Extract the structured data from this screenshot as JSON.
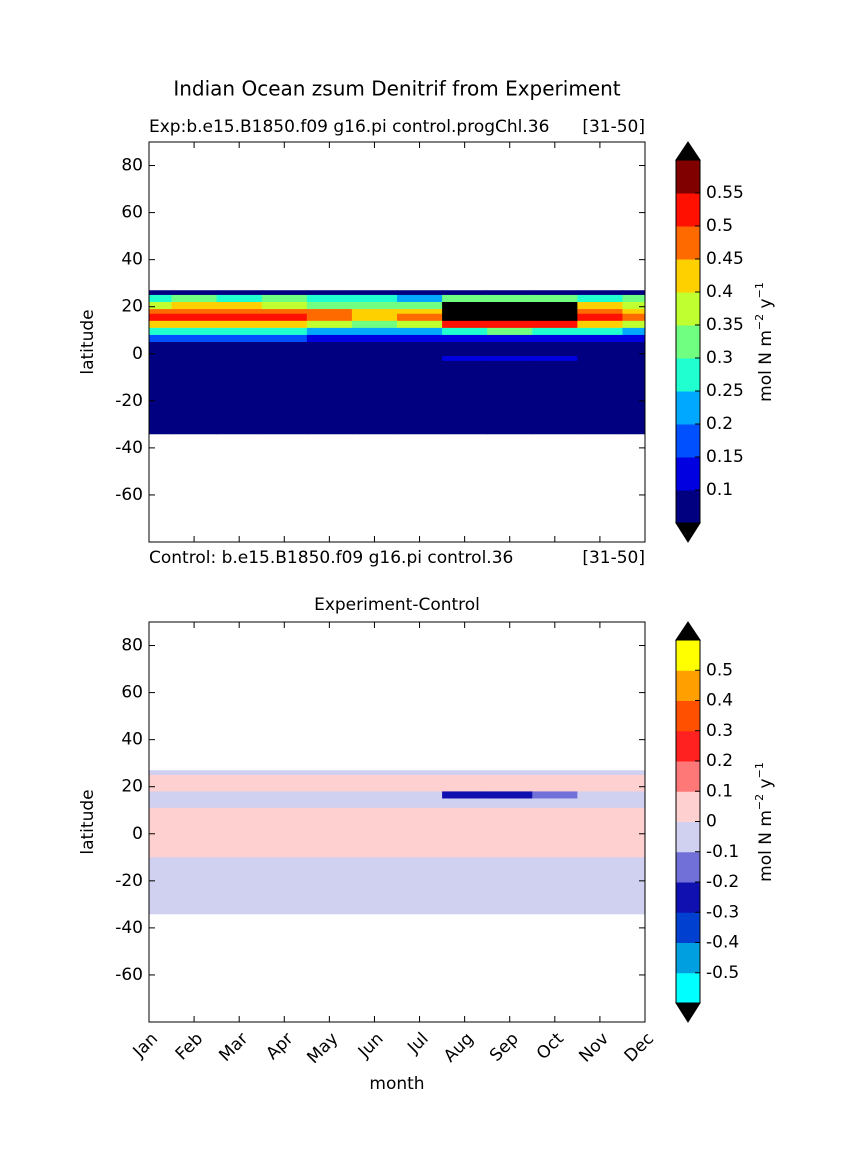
{
  "chart_data": [
    {
      "type": "contourf",
      "title": "Indian Ocean zsum Denitrif from Experiment",
      "subtitle_left": "Exp:b.e15.B1850.f09 g16.pi control.progChl.36",
      "subtitle_right": "[31-50]",
      "ylabel": "latitude",
      "ylim": [
        -80,
        90
      ],
      "yticks": [
        -60,
        -40,
        -20,
        0,
        20,
        40,
        60,
        80
      ],
      "lat_edges": [
        27,
        25,
        22,
        19,
        17,
        14,
        11,
        8,
        5,
        -1,
        -3,
        -34
      ],
      "values": [
        [
          0.07,
          0.07,
          0.07,
          0.07,
          0.07,
          0.07,
          0.07,
          0.07,
          0.07,
          0.07,
          0.07,
          0.07
        ],
        [
          0.28,
          0.3,
          0.26,
          0.3,
          0.28,
          0.25,
          0.22,
          0.3,
          0.32,
          0.3,
          0.28,
          0.3
        ],
        [
          0.38,
          0.4,
          0.42,
          0.36,
          0.3,
          0.3,
          0.3,
          0.65,
          0.65,
          0.65,
          0.4,
          0.36
        ],
        [
          0.47,
          0.48,
          0.48,
          0.47,
          0.45,
          0.42,
          0.44,
          0.65,
          0.65,
          0.65,
          0.47,
          0.42
        ],
        [
          0.52,
          0.53,
          0.53,
          0.52,
          0.47,
          0.42,
          0.45,
          0.65,
          0.65,
          0.65,
          0.52,
          0.47
        ],
        [
          0.42,
          0.44,
          0.44,
          0.42,
          0.38,
          0.34,
          0.36,
          0.5,
          0.52,
          0.5,
          0.42,
          0.38
        ],
        [
          0.25,
          0.27,
          0.27,
          0.25,
          0.22,
          0.2,
          0.22,
          0.28,
          0.3,
          0.28,
          0.25,
          0.23
        ],
        [
          0.16,
          0.18,
          0.17,
          0.15,
          0.12,
          0.1,
          0.1,
          0.12,
          0.13,
          0.12,
          0.11,
          0.12
        ],
        [
          0.07,
          0.07,
          0.07,
          0.07,
          0.07,
          0.07,
          0.07,
          0.07,
          0.07,
          0.07,
          0.07,
          0.07
        ],
        [
          0.07,
          0.07,
          0.07,
          0.07,
          0.07,
          0.07,
          0.07,
          0.12,
          0.13,
          0.11,
          0.07,
          0.07
        ],
        [
          0.06,
          0.06,
          0.06,
          0.06,
          0.06,
          0.06,
          0.06,
          0.06,
          0.06,
          0.06,
          0.06,
          0.06
        ]
      ],
      "colorbar": {
        "label_parts": [
          "mol N m",
          "−2",
          " y",
          "−1"
        ],
        "levels": [
          0.05,
          0.1,
          0.15,
          0.2,
          0.25,
          0.3,
          0.35,
          0.4,
          0.45,
          0.5,
          0.55,
          0.6
        ],
        "colors": [
          "#000080",
          "#0000e0",
          "#0050ff",
          "#00a8ff",
          "#20ffd0",
          "#70ff80",
          "#c0ff30",
          "#ffd000",
          "#ff6a00",
          "#ff1000",
          "#800000"
        ],
        "extend_colors": [
          "#000000",
          "#000000"
        ],
        "ticks": [
          0.1,
          0.15,
          0.2,
          0.25,
          0.3,
          0.35,
          0.4,
          0.45,
          0.5,
          0.55
        ]
      }
    },
    {
      "type": "contourf",
      "title": "Experiment-Control",
      "subtitle_left": "Control: b.e15.B1850.f09 g16.pi control.36",
      "subtitle_right": "[31-50]",
      "ylabel": "latitude",
      "xlabel": "month",
      "categories": [
        "Jan",
        "Feb",
        "Mar",
        "Apr",
        "May",
        "Jun",
        "Jul",
        "Aug",
        "Sep",
        "Oct",
        "Nov",
        "Dec"
      ],
      "ylim": [
        -80,
        90
      ],
      "yticks": [
        -60,
        -40,
        -20,
        0,
        20,
        40,
        60,
        80
      ],
      "lat_edges": [
        27,
        25,
        18,
        15,
        11,
        -10,
        -34
      ],
      "values": [
        [
          -0.05,
          -0.05,
          -0.05,
          -0.05,
          -0.05,
          -0.05,
          -0.05,
          -0.05,
          -0.05,
          -0.05,
          -0.05,
          -0.05
        ],
        [
          0.05,
          0.05,
          0.05,
          0.05,
          0.05,
          0.05,
          0.05,
          0.05,
          0.05,
          0.05,
          0.05,
          0.05
        ],
        [
          -0.05,
          -0.05,
          -0.05,
          -0.05,
          -0.05,
          -0.05,
          -0.05,
          -0.25,
          -0.3,
          -0.15,
          -0.05,
          -0.05
        ],
        [
          -0.05,
          -0.05,
          -0.05,
          -0.05,
          -0.05,
          -0.05,
          -0.05,
          -0.05,
          -0.05,
          -0.05,
          -0.05,
          -0.05
        ],
        [
          0.05,
          0.05,
          0.05,
          0.05,
          0.05,
          0.05,
          0.05,
          0.05,
          0.05,
          0.05,
          0.05,
          0.05
        ],
        [
          -0.05,
          -0.05,
          -0.05,
          -0.05,
          -0.05,
          -0.05,
          -0.05,
          -0.05,
          -0.05,
          -0.05,
          -0.05,
          -0.05
        ]
      ],
      "colorbar": {
        "label_parts": [
          "mol N m",
          "−2",
          " y",
          "−1"
        ],
        "levels": [
          -0.6,
          -0.5,
          -0.4,
          -0.3,
          -0.2,
          -0.1,
          0,
          0.1,
          0.2,
          0.3,
          0.4,
          0.5,
          0.6
        ],
        "colors": [
          "#00ffff",
          "#00a0e0",
          "#0040d0",
          "#1010b0",
          "#7070d8",
          "#d0d0f0",
          "#ffd0d0",
          "#ff7878",
          "#ff2020",
          "#ff5000",
          "#ffa000",
          "#ffff00"
        ],
        "extend_colors": [
          "#000000",
          "#000000"
        ],
        "ticks": [
          -0.5,
          -0.4,
          -0.3,
          -0.2,
          -0.1,
          0,
          0.1,
          0.2,
          0.3,
          0.4,
          0.5
        ]
      }
    }
  ]
}
